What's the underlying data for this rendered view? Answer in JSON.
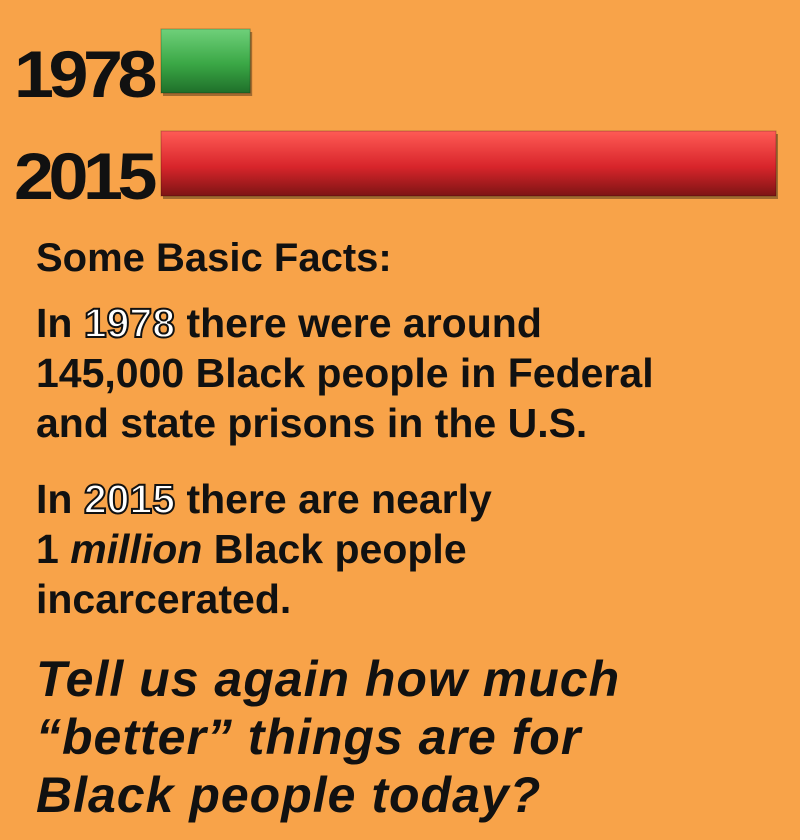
{
  "chart_data": {
    "type": "bar",
    "orientation": "horizontal",
    "categories": [
      "1978",
      "2015"
    ],
    "values": [
      145000,
      1000000
    ],
    "bar_colors": [
      "#3aa745",
      "#d8252b"
    ]
  },
  "facts": {
    "heading": "Some Basic Facts:",
    "fact1": {
      "prefix": "In ",
      "year": "1978",
      "line1_rest": " there were around",
      "line2": "145,000 Black people in Federal",
      "line3": "and state prisons in the U.S."
    },
    "fact2": {
      "prefix": "In ",
      "year": "2015",
      "line1_rest": " there are nearly",
      "line2_num": "1 ",
      "line2_emph": "million",
      "line2_rest": " Black people",
      "line3": "incarcerated."
    }
  },
  "closing": {
    "line1": "Tell us again how much",
    "line2": "“better” things are for",
    "line3": "Black people today?"
  }
}
